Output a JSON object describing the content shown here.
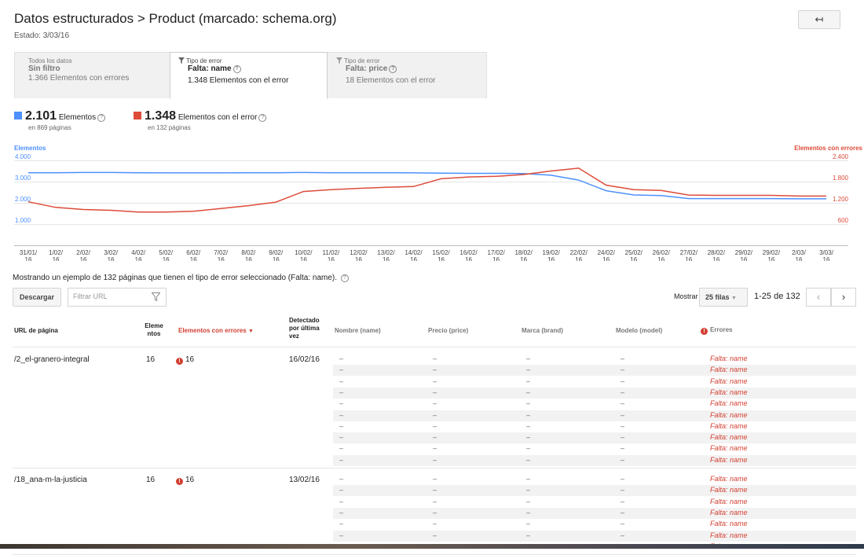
{
  "header": {
    "title": "Datos estructurados > Product (marcado: schema.org)",
    "status": "Estado: 3/03/16",
    "back_icon": "↤"
  },
  "filter_tabs": [
    {
      "small": "Todos los datos",
      "strong": "Sin filtro",
      "count": "1.366 Elementos con errores",
      "active": false
    },
    {
      "small": "Tipo de error",
      "strong": "Falta: name",
      "count": "1.348 Elementos con el error",
      "active": true
    },
    {
      "small": "Tipo de error",
      "strong": "Falta: price",
      "count": "18 Elementos con el error",
      "active": false
    }
  ],
  "metrics": [
    {
      "value": "2.101",
      "label": "Elementos",
      "sub": "en 869 páginas",
      "color": "#4d90fe"
    },
    {
      "value": "1.348",
      "label": "Elementos con el error",
      "sub": "en 132 páginas",
      "color": "#dd4b39"
    }
  ],
  "chart_data": {
    "type": "line",
    "left_axis_title": "Elementos",
    "right_axis_title": "Elementos con errores",
    "left_ticks": [
      "4.000",
      "3.000",
      "2.000",
      "1.000"
    ],
    "right_ticks": [
      "2.400",
      "1.800",
      "1.200",
      "600"
    ],
    "left_ylim": [
      0,
      4000
    ],
    "right_ylim": [
      0,
      2400
    ],
    "x": [
      "31/01/16",
      "1/02/16",
      "2/02/16",
      "3/02/16",
      "4/02/16",
      "5/02/16",
      "6/02/16",
      "7/02/16",
      "8/02/16",
      "9/02/16",
      "10/02/16",
      "11/02/16",
      "12/02/16",
      "13/02/16",
      "14/02/16",
      "15/02/16",
      "16/02/16",
      "17/02/16",
      "18/02/16",
      "19/02/16",
      "22/02/16",
      "24/02/16",
      "25/02/16",
      "26/02/16",
      "27/02/16",
      "28/02/16",
      "29/02/16",
      "29/02/16",
      "2/03/16",
      "3/03/16"
    ],
    "x_tick_top": [
      "31/01/",
      "1/02/",
      "2/02/",
      "3/02/",
      "4/02/",
      "5/02/",
      "6/02/",
      "7/02/",
      "8/02/",
      "9/02/",
      "10/02/",
      "11/02/",
      "12/02/",
      "13/02/",
      "14/02/",
      "15/02/",
      "16/02/",
      "17/02/",
      "18/02/",
      "19/02/",
      "22/02/",
      "24/02/",
      "25/02/",
      "26/02/",
      "27/02/",
      "28/02/",
      "29/02/",
      "29/02/",
      "2/03/",
      "3/03/"
    ],
    "x_tick_bottom": "16",
    "series": [
      {
        "name": "Elementos",
        "axis": "left",
        "color": "#4d90fe",
        "values": [
          3420,
          3420,
          3430,
          3430,
          3420,
          3410,
          3410,
          3410,
          3420,
          3420,
          3430,
          3420,
          3420,
          3420,
          3410,
          3400,
          3390,
          3390,
          3380,
          3300,
          3070,
          2570,
          2370,
          2340,
          2200,
          2200,
          2200,
          2200,
          2190,
          2190
        ]
      },
      {
        "name": "Elementos con errores",
        "axis": "right",
        "color": "#dd4b39",
        "values": [
          1230,
          1070,
          1010,
          990,
          940,
          940,
          960,
          1040,
          1120,
          1220,
          1520,
          1570,
          1610,
          1640,
          1660,
          1880,
          1930,
          1950,
          2000,
          2100,
          2180,
          1700,
          1570,
          1550,
          1420,
          1410,
          1410,
          1410,
          1390,
          1390
        ]
      }
    ],
    "grid": true
  },
  "sample_text": "Mostrando un ejemplo de 132 páginas que tienen el tipo de error seleccionado (Falta: name).",
  "toolbar": {
    "download": "Descargar",
    "filter_placeholder": "Filtrar URL",
    "show": "Mostrar",
    "rows": "25 filas",
    "range": "1-25 de 132",
    "prev": "‹",
    "next": "›"
  },
  "table": {
    "headers": {
      "url": "URL de página",
      "elements": "Elementos",
      "errors": "Elementos con errores",
      "detected": "Detectado por última vez",
      "name": "Nombre (name)",
      "price": "Precio (price)",
      "brand": "Marca (brand)",
      "model": "Modelo (model)",
      "errcol": "Errores"
    },
    "rows": [
      {
        "url": "/2_el-granero-integral",
        "elements": "16",
        "errors": "16",
        "detected": "16/02/16",
        "subrows": 10
      },
      {
        "url": "/18_ana-m-la-justicia",
        "elements": "16",
        "errors": "16",
        "detected": "13/02/16",
        "subrows": 7
      }
    ],
    "dash": "–",
    "error_text": "Falta: name"
  }
}
